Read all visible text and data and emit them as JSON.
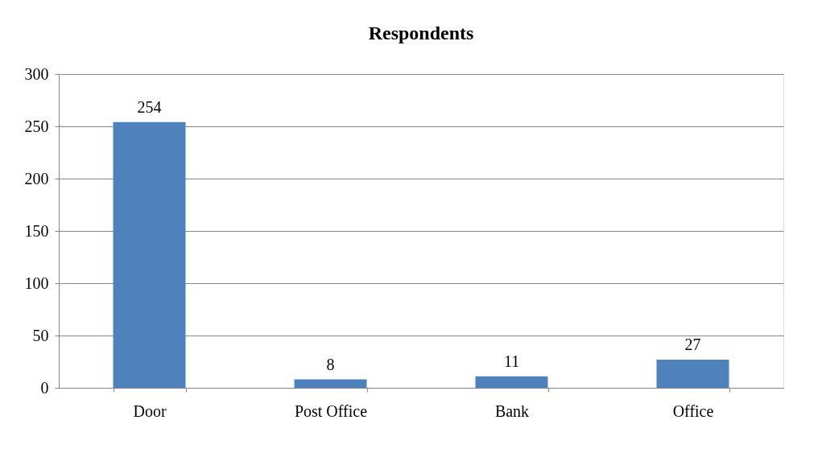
{
  "chart_data": {
    "type": "bar",
    "title": "Respondents",
    "categories": [
      "Door",
      "Post Office",
      "Bank",
      "Office"
    ],
    "values": [
      254,
      8,
      11,
      27
    ],
    "color": "#4f81bd",
    "ylim": [
      0,
      300
    ],
    "yticks": [
      0,
      50,
      100,
      150,
      200,
      250,
      300
    ],
    "grid": "y",
    "data_labels": true
  }
}
